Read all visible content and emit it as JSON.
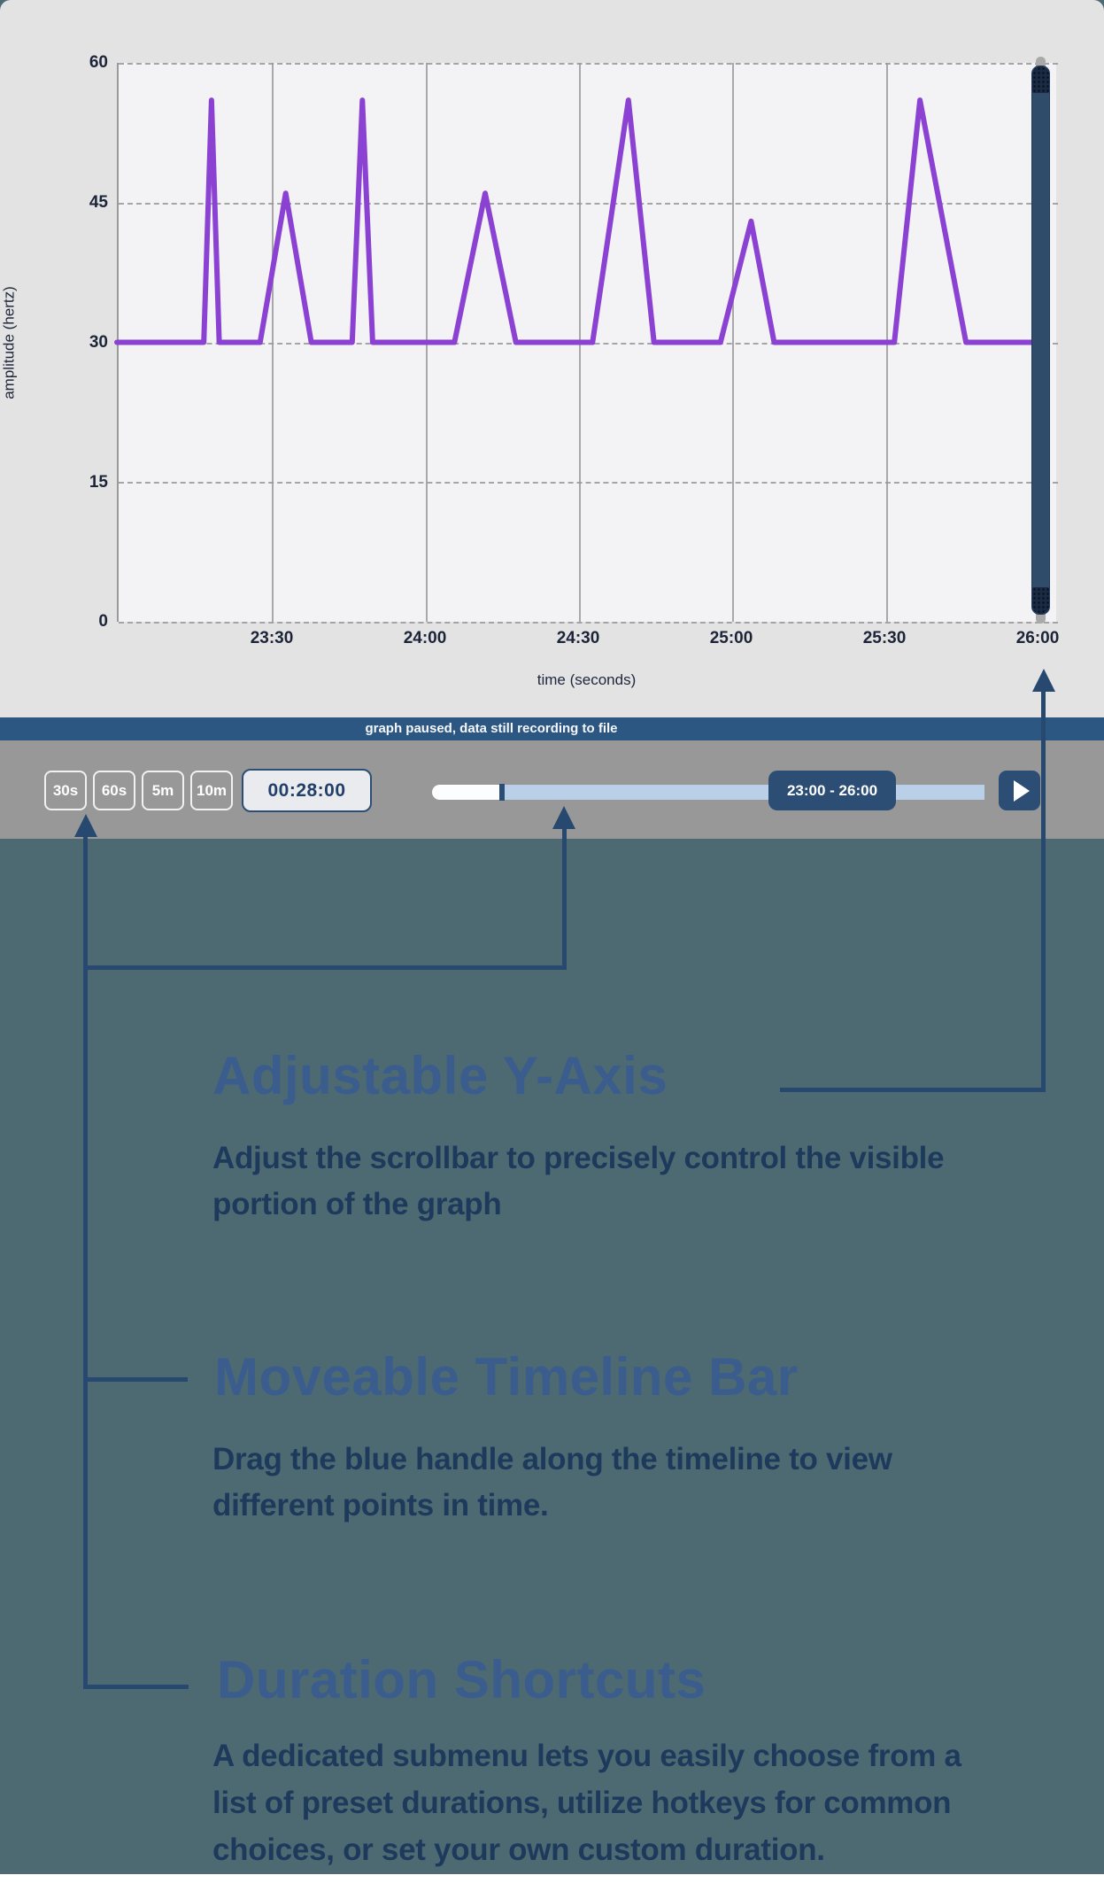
{
  "chart": {
    "ylabel": "amplitude (hertz)",
    "xlabel": "time (seconds)",
    "yticks": [
      "60",
      "45",
      "30",
      "15",
      "0"
    ],
    "xticks": [
      "23:30",
      "24:00",
      "24:30",
      "25:00",
      "25:30",
      "26:00"
    ]
  },
  "chart_data": {
    "type": "line",
    "title": "",
    "xlabel": "time (seconds)",
    "ylabel": "amplitude (hertz)",
    "x_range_minutes": [
      0,
      180
    ],
    "x_range_labels": [
      "23:00",
      "26:00"
    ],
    "ylim": [
      0,
      60
    ],
    "yticks": [
      0,
      15,
      30,
      45,
      60
    ],
    "xtick_minutes": [
      30,
      60,
      90,
      120,
      150,
      180
    ],
    "xtick_labels": [
      "23:30",
      "24:00",
      "24:30",
      "25:00",
      "25:30",
      "26:00"
    ],
    "grid": true,
    "baseline_value": 30,
    "series": [
      {
        "name": "amplitude",
        "color": "#8b42d3",
        "x_minutes": [
          0,
          17,
          18.5,
          20,
          28,
          33,
          38,
          46,
          48,
          50,
          66,
          72,
          78,
          93,
          100,
          105,
          118,
          124,
          128.5,
          152,
          157,
          166,
          180
        ],
        "values": [
          30,
          30,
          56,
          30,
          30,
          46,
          30,
          30,
          56,
          30,
          30,
          46,
          30,
          30,
          56,
          30,
          30,
          43,
          30,
          30,
          56,
          30,
          30
        ]
      }
    ],
    "annotations_on_chart": []
  },
  "status_bar": {
    "text": "graph paused, data still recording to file"
  },
  "toolbar": {
    "duration_buttons": [
      "30s",
      "60s",
      "5m",
      "10m"
    ],
    "time_display": "00:28:00",
    "range_label": "23:00 - 26:00",
    "play_icon": "▶"
  },
  "scrollbar": {
    "orientation": "vertical",
    "position": "right-edge-of-graph"
  },
  "annotations": {
    "adjustable": {
      "title": "Adjustable Y-Axis",
      "lines": [
        "Adjust the scrollbar to precisely control the visible",
        "portion of the graph"
      ]
    },
    "moveable": {
      "title": "Moveable Timeline Bar",
      "lines": [
        "Drag the blue handle along the timeline to view",
        "different points in time."
      ]
    },
    "duration": {
      "title": "Duration Shortcuts",
      "lines": [
        "A dedicated submenu lets you easily choose from a",
        "list of preset durations, utilize hotkeys for common",
        "choices, or set your own custom duration."
      ]
    }
  },
  "colors": {
    "page_background": "#4d6971",
    "card_background": "#e3e3e4",
    "plot_background": "#f3f3f5",
    "line_purple": "#8b42d3",
    "status_bar_navy": "#2d5783",
    "toolbar_gray": "#989898",
    "ui_navy": "#2c4e74",
    "track_blue": "#bad0e8",
    "arrow_navy": "#27496f",
    "heading_blue": "#3a5d8e",
    "body_text_navy": "#1d3a5c",
    "scroll_thumb_navy": "#2f4c6b"
  }
}
